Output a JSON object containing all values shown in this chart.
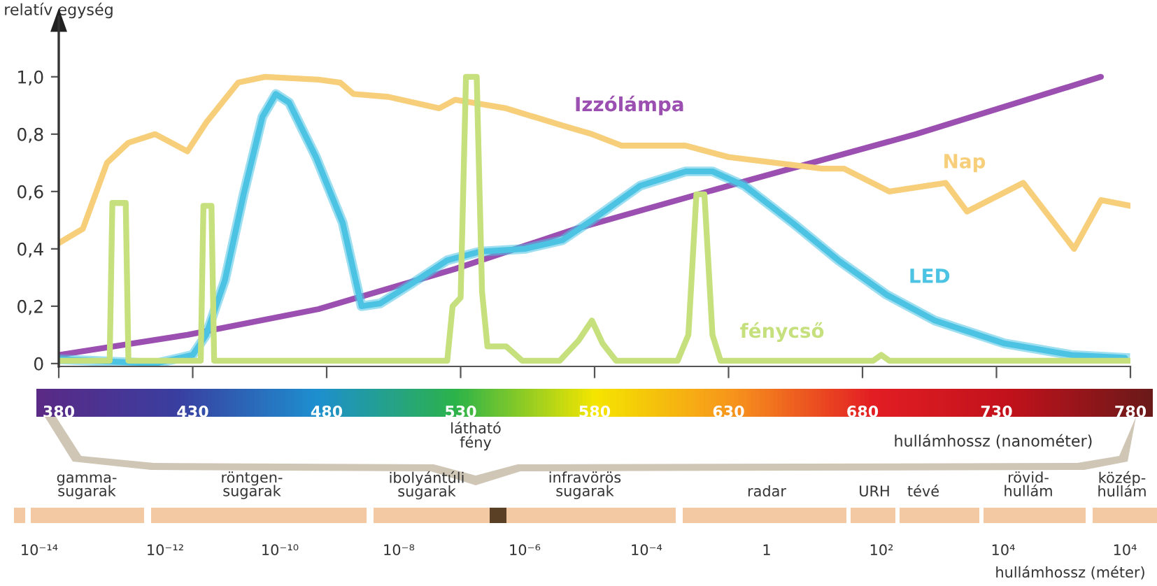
{
  "chart_data": {
    "type": "line",
    "ylabel": "relatív egység",
    "xlabel": "hullámhossz (nanométer)",
    "xlim": [
      380,
      780
    ],
    "ylim": [
      -0.01,
      1.18
    ],
    "xticks": [
      380,
      430,
      480,
      530,
      580,
      630,
      680,
      730,
      780
    ],
    "yticks": [
      0,
      {
        "value": 0.2,
        "label": "0,2"
      },
      {
        "value": 0.4,
        "label": "0,4"
      },
      {
        "value": 0.6,
        "label": "0,6"
      },
      {
        "value": 0.8,
        "label": "0,8"
      },
      {
        "value": 1.0,
        "label": "1,0"
      }
    ],
    "legend": false,
    "grid": false,
    "line_style": "solid",
    "marker": "none",
    "series": [
      {
        "name": "Izzólámpa",
        "color": "#9b4fb0",
        "x": [
          380,
          428,
          477,
          528,
          573,
          630,
          700,
          769
        ],
        "values": [
          0.03,
          0.1,
          0.19,
          0.33,
          0.47,
          0.62,
          0.8,
          1.0
        ]
      },
      {
        "name": "Nap",
        "color": "#f7cf7a",
        "x": [
          380,
          389,
          398,
          406,
          416,
          428,
          435,
          447,
          457,
          477,
          485,
          490,
          503,
          522,
          528,
          547,
          568,
          579,
          590,
          614,
          630,
          665,
          673,
          690,
          711,
          719,
          740,
          759,
          769,
          780
        ],
        "values": [
          0.42,
          0.47,
          0.7,
          0.77,
          0.8,
          0.74,
          0.84,
          0.98,
          1.0,
          0.99,
          0.98,
          0.94,
          0.93,
          0.89,
          0.92,
          0.89,
          0.83,
          0.8,
          0.76,
          0.76,
          0.72,
          0.68,
          0.68,
          0.6,
          0.63,
          0.53,
          0.63,
          0.4,
          0.57,
          0.55
        ]
      },
      {
        "name": "LED",
        "color": "#4cc3e3",
        "x": [
          380,
          416,
          430,
          435,
          442,
          449,
          456,
          461,
          466,
          476,
          486,
          493,
          500,
          512,
          525,
          537,
          554,
          568,
          579,
          597,
          614,
          624,
          636,
          654,
          671,
          689,
          707,
          733,
          758,
          778
        ],
        "values": [
          0.015,
          0.0,
          0.03,
          0.1,
          0.29,
          0.59,
          0.86,
          0.94,
          0.91,
          0.72,
          0.49,
          0.2,
          0.21,
          0.28,
          0.36,
          0.39,
          0.4,
          0.43,
          0.5,
          0.62,
          0.67,
          0.67,
          0.62,
          0.49,
          0.36,
          0.24,
          0.15,
          0.07,
          0.03,
          0.02
        ]
      },
      {
        "name": "fénycső",
        "color": "#c5e07c",
        "x": [
          380,
          399,
          400,
          405,
          406,
          433,
          434,
          437,
          438,
          525,
          527,
          530,
          532,
          536,
          538,
          540,
          547,
          553,
          567,
          574,
          579,
          583,
          588,
          611,
          615,
          618,
          621,
          624,
          627,
          684,
          687,
          690,
          780
        ],
        "values": [
          0.01,
          0.01,
          0.56,
          0.56,
          0.01,
          0.01,
          0.55,
          0.55,
          0.01,
          0.01,
          0.2,
          0.23,
          1.0,
          1.0,
          0.25,
          0.06,
          0.06,
          0.01,
          0.01,
          0.08,
          0.15,
          0.07,
          0.01,
          0.01,
          0.1,
          0.59,
          0.59,
          0.1,
          0.01,
          0.01,
          0.03,
          0.01,
          0.01
        ]
      }
    ],
    "annotations": [
      "látható\nfény",
      "gamma-\nsugarak",
      "röntgen-\nsugarak",
      "ibolyántúli\nsugarak",
      "infravörös\nsugarak",
      "radar",
      "URH",
      "tévé",
      "rövid-\nhullám",
      "közép-\nhullám",
      "10⁻¹⁴",
      "10⁻¹²",
      "10⁻¹⁰",
      "10⁻⁸",
      "10⁻⁶",
      "10⁻⁴",
      "1",
      "10²",
      "10⁴",
      "10⁴",
      "hullámhossz (méter)"
    ]
  }
}
